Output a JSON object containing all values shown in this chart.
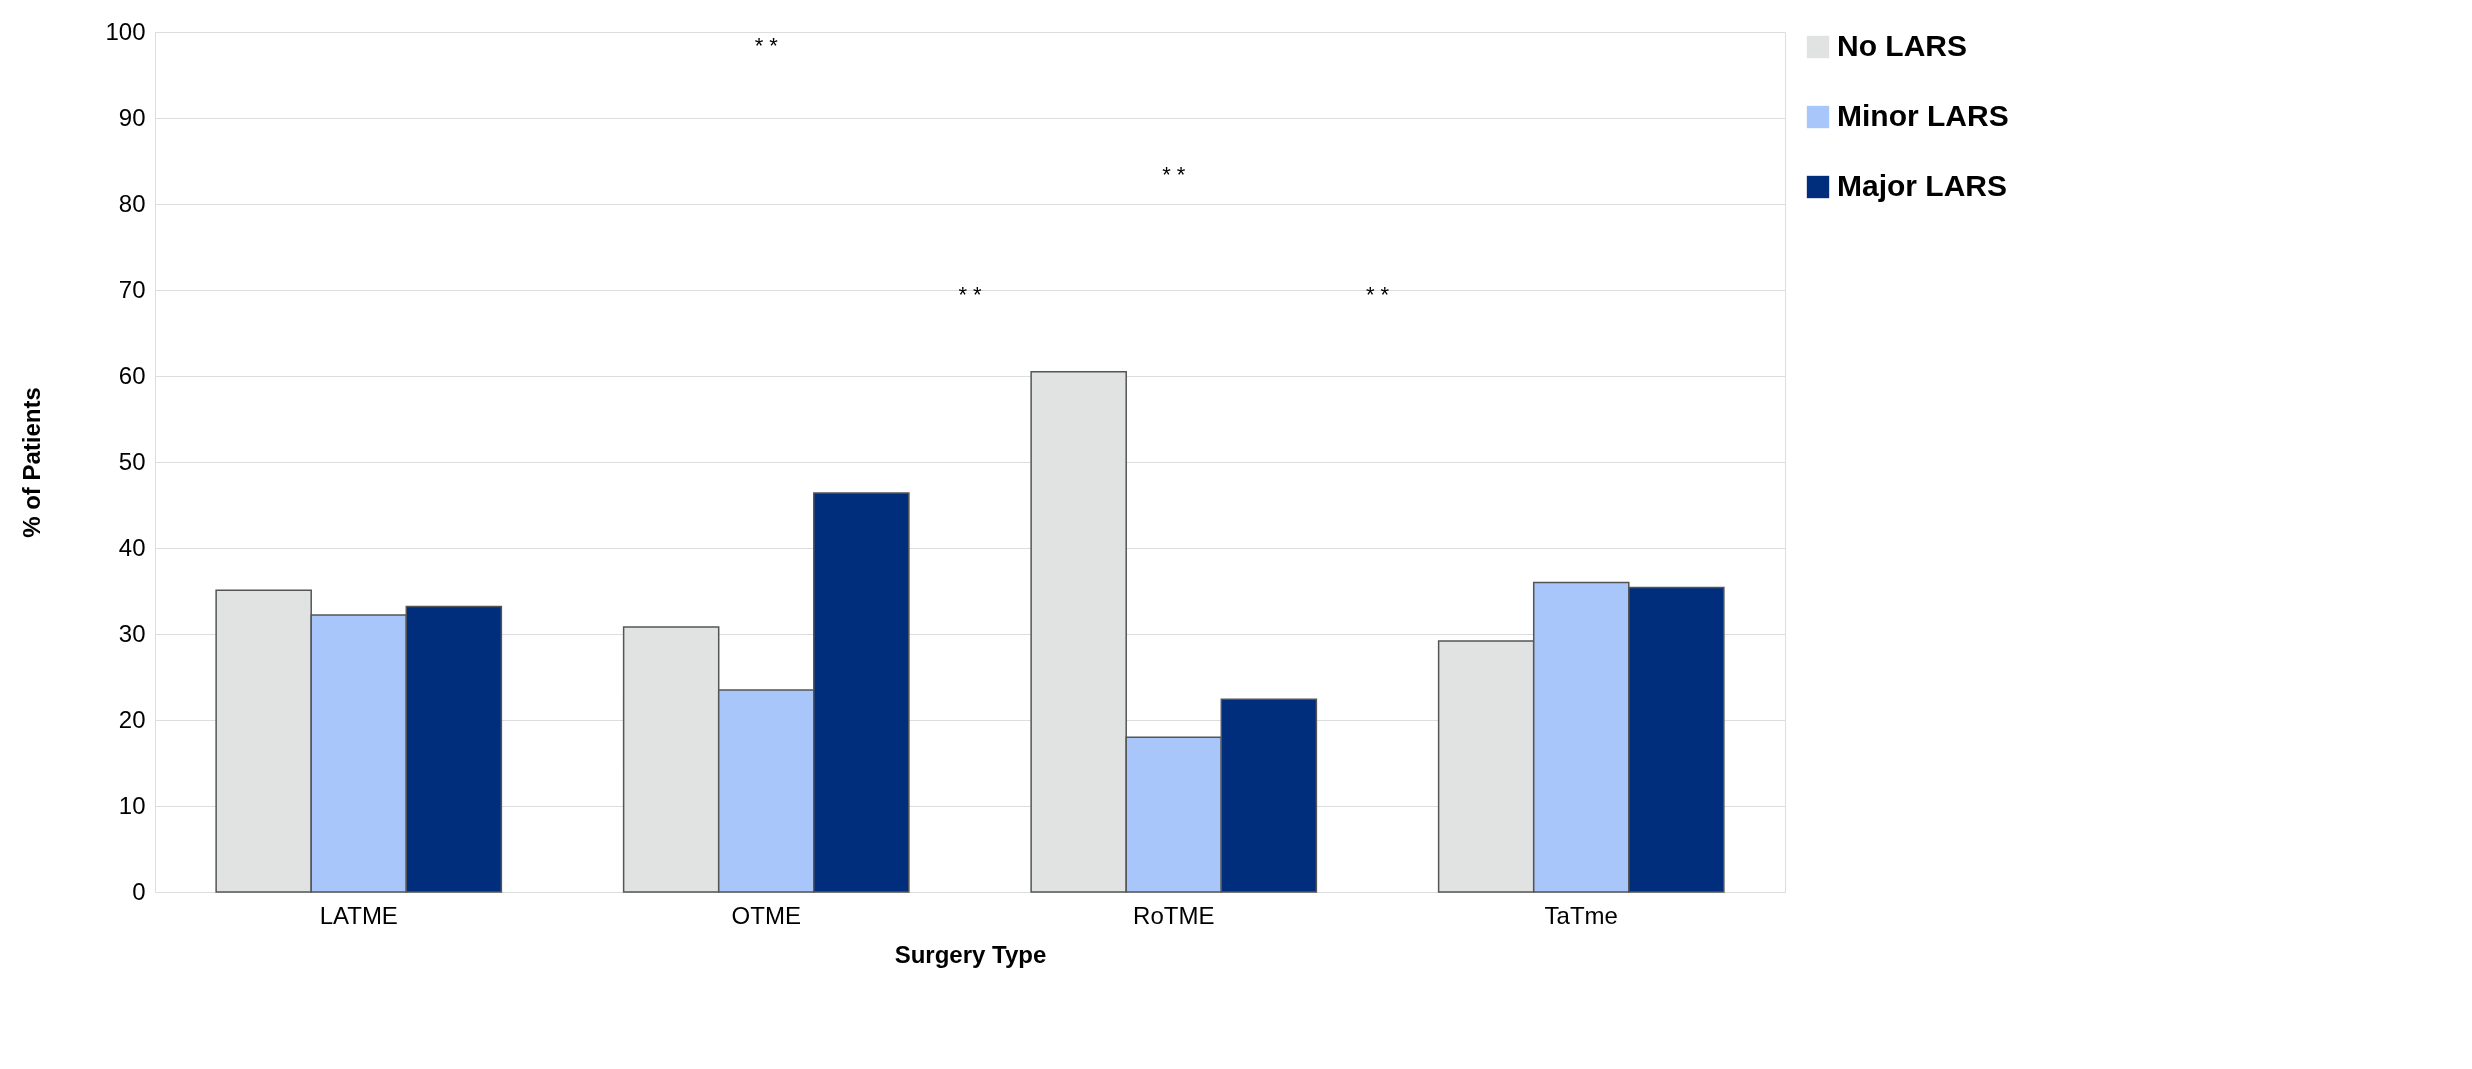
{
  "chart_data": {
    "type": "bar",
    "xlabel": "Surgery Type",
    "ylabel": "% of Patients",
    "categories": [
      "LATME",
      "OTME",
      "RoTME",
      "TaTme"
    ],
    "series": [
      {
        "name": "No LARS",
        "color": "#e1e3e2",
        "values": [
          35.1,
          30.8,
          60.5,
          29.2
        ]
      },
      {
        "name": "Minor LARS",
        "color": "#a8c6fa",
        "values": [
          32.2,
          23.5,
          18.0,
          36.0
        ]
      },
      {
        "name": "Major LARS",
        "color": "#002e7c",
        "values": [
          33.2,
          46.4,
          22.4,
          35.4
        ]
      }
    ],
    "ylim": [
      0,
      100
    ],
    "yticks": [
      0,
      10,
      20,
      30,
      40,
      50,
      60,
      70,
      80,
      90,
      100
    ],
    "grid": "y",
    "legend": "right",
    "annotations": [
      "* *",
      "* *",
      "* *",
      "* *"
    ]
  }
}
